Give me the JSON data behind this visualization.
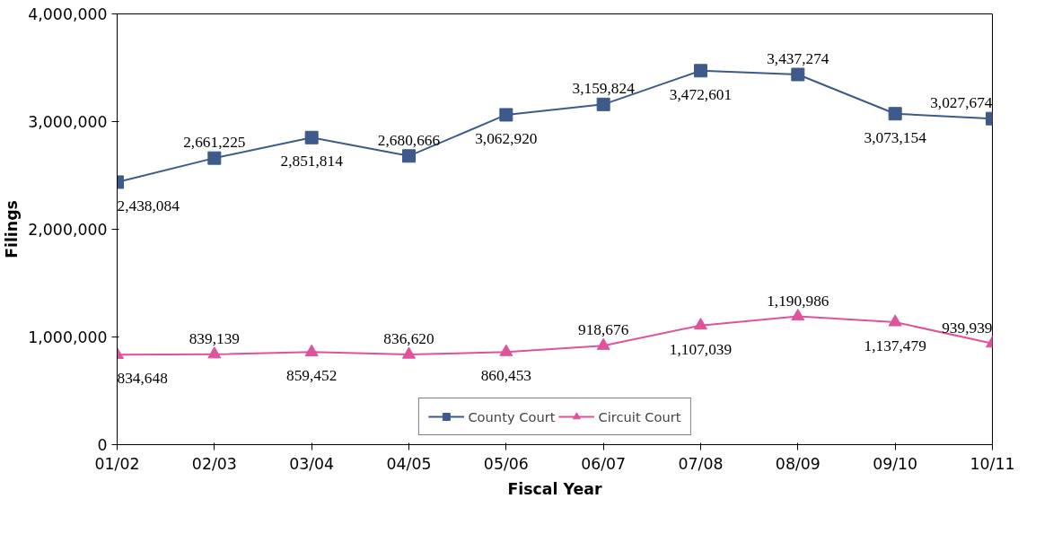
{
  "chart_data": {
    "type": "line",
    "xlabel": "Fiscal Year",
    "ylabel": "Filings",
    "categories": [
      "01/02",
      "02/03",
      "03/04",
      "04/05",
      "05/06",
      "06/07",
      "07/08",
      "08/09",
      "09/10",
      "10/11"
    ],
    "ylim": [
      0,
      4000000
    ],
    "yticks": [
      {
        "value": 0,
        "label": "0"
      },
      {
        "value": 1000000,
        "label": "1,000,000"
      },
      {
        "value": 2000000,
        "label": "2,000,000"
      },
      {
        "value": 3000000,
        "label": "3,000,000"
      },
      {
        "value": 4000000,
        "label": "4,000,000"
      }
    ],
    "grid": false,
    "legend": "bottom",
    "line_style": "solid",
    "series": [
      {
        "name": "County Court",
        "color": "#3d5a8a",
        "marker": "square",
        "values": [
          2438084,
          2661225,
          2851814,
          2680666,
          3062920,
          3159824,
          3472601,
          3437274,
          3073154,
          3027674
        ],
        "value_labels": [
          "2,438,084",
          "2,661,225",
          "2,851,814",
          "2,680,666",
          "3,062,920",
          "3,159,824",
          "3,472,601",
          "3,437,274",
          "3,073,154",
          "3,027,674"
        ]
      },
      {
        "name": "Circuit Court",
        "color": "#e0529c",
        "marker": "triangle",
        "values": [
          834648,
          839139,
          859452,
          836620,
          860453,
          918676,
          1107039,
          1190986,
          1137479,
          939939
        ],
        "value_labels": [
          "834,648",
          "839,139",
          "859,452",
          "836,620",
          "860,453",
          "918,676",
          "1,107,039",
          "1,190,986",
          "1,137,479",
          "939,939"
        ]
      }
    ]
  }
}
